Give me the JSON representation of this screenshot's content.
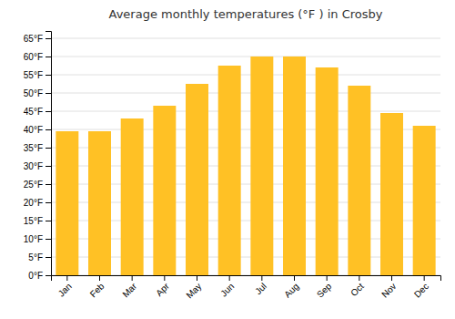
{
  "chart_data": {
    "type": "bar",
    "title": "Average monthly temperatures (°F ) in Crosby",
    "categories": [
      "Jan",
      "Feb",
      "Mar",
      "Apr",
      "May",
      "Jun",
      "Jul",
      "Aug",
      "Sep",
      "Oct",
      "Nov",
      "Dec"
    ],
    "values": [
      39.5,
      39.5,
      43.0,
      46.5,
      52.5,
      57.5,
      60.0,
      60.0,
      57.0,
      52.0,
      44.5,
      41.0
    ],
    "color": "#FFC125",
    "ylim": [
      0,
      67
    ],
    "yticks": [
      {
        "value": 0,
        "label": "0°F"
      },
      {
        "value": 5,
        "label": "5°F"
      },
      {
        "value": 10,
        "label": "10°F"
      },
      {
        "value": 15,
        "label": "15°F"
      },
      {
        "value": 20,
        "label": "20°F"
      },
      {
        "value": 25,
        "label": "25°F"
      },
      {
        "value": 30,
        "label": "30°F"
      },
      {
        "value": 35,
        "label": "35°F"
      },
      {
        "value": 40,
        "label": "40°F"
      },
      {
        "value": 45,
        "label": "45°F"
      },
      {
        "value": 50,
        "label": "50°F"
      },
      {
        "value": 55,
        "label": "55°F"
      },
      {
        "value": 60,
        "label": "60°F"
      },
      {
        "value": 65,
        "label": "65°F"
      }
    ],
    "grid": true
  }
}
